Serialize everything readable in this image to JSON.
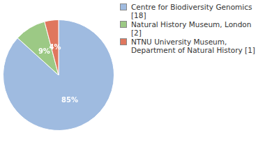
{
  "chart_data": {
    "type": "pie",
    "categories": [
      "Centre for Biodiversity Genomics [18]",
      "Natural History Museum, London [2]",
      "NTNU University Museum, Department of Natural History [1]"
    ],
    "values": [
      85,
      9,
      4
    ],
    "value_labels": [
      "85%",
      "9%",
      "4%"
    ],
    "colors": [
      "#9fbbe0",
      "#9cc985",
      "#e0775e"
    ],
    "data_labels": true,
    "legend": "top-right"
  }
}
